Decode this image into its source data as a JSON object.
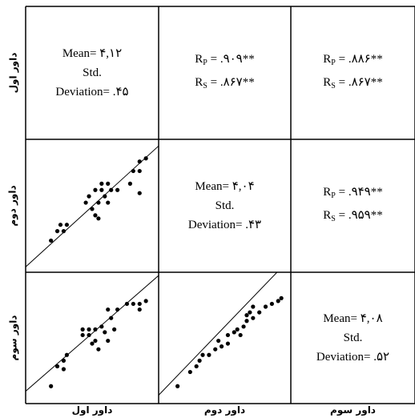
{
  "chart_data": {
    "type": "scatter-matrix",
    "variables": [
      "داور اول",
      "داور دوم",
      "داور سوم"
    ],
    "row_labels": [
      "داور اول",
      "داور دوم",
      "داور سوم"
    ],
    "column_labels": [
      "داور اول",
      "داور دوم",
      "داور سوم"
    ],
    "diagonal": [
      {
        "mean_label": "Mean=",
        "mean": "۴,۱۲",
        "std_label": "Std.",
        "deviation_label": "Deviation=",
        "deviation": ".۴۵"
      },
      {
        "mean_label": "Mean=",
        "mean": "۴,۰۴",
        "std_label": "Std.",
        "deviation_label": "Deviation=",
        "deviation": ".۴۳"
      },
      {
        "mean_label": "Mean=",
        "mean": "۴,۰۸",
        "std_label": "Std.",
        "deviation_label": "Deviation=",
        "deviation": ".۵۲"
      }
    ],
    "correlations": [
      {
        "pair": [
          "داور اول",
          "داور دوم"
        ],
        "rp": ".۹۰۹**",
        "rs": ".۸۶۷**"
      },
      {
        "pair": [
          "داور اول",
          "داور سوم"
        ],
        "rp": ".۸۸۶**",
        "rs": ".۸۶۷**"
      },
      {
        "pair": [
          "داور دوم",
          "داور سوم"
        ],
        "rp": ".۹۴۹**",
        "rs": ".۹۵۹**"
      }
    ],
    "scatter": [
      {
        "x_var": "داور اول",
        "y_var": "داور دوم",
        "xlim": [
          3.0,
          5.0
        ],
        "ylim": [
          3.0,
          5.0
        ],
        "fit_line": {
          "intercept": 0.35,
          "slope": 0.91
        },
        "points": [
          [
            3.35,
            3.45
          ],
          [
            3.45,
            3.6
          ],
          [
            3.55,
            3.6
          ],
          [
            3.5,
            3.7
          ],
          [
            3.6,
            3.7
          ],
          [
            3.9,
            4.05
          ],
          [
            4.0,
            3.95
          ],
          [
            3.95,
            4.15
          ],
          [
            4.05,
            3.85
          ],
          [
            4.1,
            4.05
          ],
          [
            4.05,
            4.25
          ],
          [
            4.15,
            4.25
          ],
          [
            4.2,
            4.15
          ],
          [
            4.1,
            3.8
          ],
          [
            4.25,
            4.05
          ],
          [
            4.3,
            4.25
          ],
          [
            4.25,
            4.35
          ],
          [
            4.15,
            4.35
          ],
          [
            4.4,
            4.25
          ],
          [
            4.65,
            4.55
          ],
          [
            4.75,
            4.55
          ],
          [
            4.75,
            4.7
          ],
          [
            4.85,
            4.75
          ],
          [
            4.75,
            4.2
          ],
          [
            4.6,
            4.35
          ]
        ]
      },
      {
        "x_var": "داور اول",
        "y_var": "داور سوم",
        "xlim": [
          3.0,
          5.0
        ],
        "ylim": [
          2.8,
          5.0
        ],
        "fit_line": {
          "intercept": 0.1,
          "slope": 0.97
        },
        "points": [
          [
            3.35,
            3.05
          ],
          [
            3.45,
            3.4
          ],
          [
            3.55,
            3.5
          ],
          [
            3.55,
            3.35
          ],
          [
            3.6,
            3.6
          ],
          [
            3.85,
            3.95
          ],
          [
            3.85,
            4.05
          ],
          [
            3.95,
            4.05
          ],
          [
            3.95,
            3.95
          ],
          [
            4.0,
            3.8
          ],
          [
            4.05,
            3.85
          ],
          [
            4.05,
            4.05
          ],
          [
            4.1,
            3.7
          ],
          [
            4.15,
            4.1
          ],
          [
            4.2,
            4.0
          ],
          [
            4.25,
            3.85
          ],
          [
            4.3,
            4.25
          ],
          [
            4.25,
            4.4
          ],
          [
            4.35,
            4.05
          ],
          [
            4.4,
            4.4
          ],
          [
            4.55,
            4.5
          ],
          [
            4.65,
            4.5
          ],
          [
            4.75,
            4.5
          ],
          [
            4.85,
            4.55
          ],
          [
            4.75,
            4.4
          ]
        ]
      },
      {
        "x_var": "داور دوم",
        "y_var": "داور سوم",
        "xlim": [
          3.0,
          5.0
        ],
        "ylim": [
          2.8,
          5.0
        ],
        "fit_line": {
          "intercept": -0.5,
          "slope": 1.15
        },
        "points": [
          [
            3.25,
            3.05
          ],
          [
            3.45,
            3.3
          ],
          [
            3.55,
            3.4
          ],
          [
            3.6,
            3.5
          ],
          [
            3.65,
            3.6
          ],
          [
            3.75,
            3.6
          ],
          [
            3.85,
            3.7
          ],
          [
            3.9,
            3.85
          ],
          [
            3.95,
            3.75
          ],
          [
            4.05,
            3.8
          ],
          [
            4.05,
            3.95
          ],
          [
            4.15,
            4.0
          ],
          [
            4.2,
            4.05
          ],
          [
            4.25,
            3.95
          ],
          [
            4.3,
            4.1
          ],
          [
            4.35,
            4.2
          ],
          [
            4.35,
            4.3
          ],
          [
            4.4,
            4.35
          ],
          [
            4.45,
            4.25
          ],
          [
            4.45,
            4.45
          ],
          [
            4.55,
            4.35
          ],
          [
            4.65,
            4.45
          ],
          [
            4.75,
            4.5
          ],
          [
            4.85,
            4.55
          ],
          [
            4.9,
            4.6
          ]
        ]
      }
    ]
  }
}
